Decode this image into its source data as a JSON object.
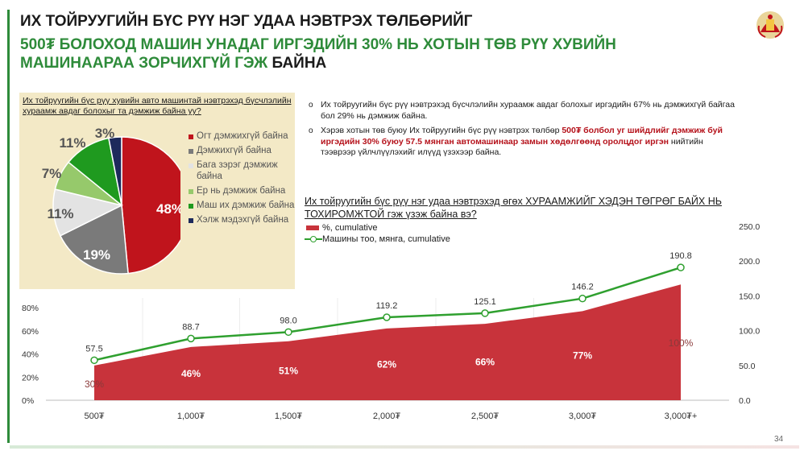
{
  "header": {
    "title_line1": "ИХ ТОЙРУУГИЙН БҮС РҮҮ НЭГ УДАА НЭВТРЭХ ТӨЛБӨРИЙГ",
    "title_line2": "500₮ БОЛОХОД МАШИН УНАДАГ ИРГЭДИЙН 30% НЬ ХОТЫН ТӨВ РҮҮ ХУВИЙН",
    "title_line3_green": "МАШИНААРАА ЗОРЧИХГҮЙ ГЭЖ ",
    "title_line3_dark": "БАЙНА"
  },
  "bullets": {
    "b1": "Их тойруугийн бүс рүү нэвтрэхэд бүсчлэлийн хураамж авдаг болохыг иргэдийн 67% нь дэмжихгүй байгаа бол 29% нь дэмжиж байна.",
    "b2_part1": "Хэрэв хотын төв буюу Их тойруугийн бүс рүү нэвтрэх төлбөр ",
    "b2_highlight": "500₮ болбол уг шийдлийг дэмжиж буй иргэдийн 30% буюу 57.5 мянган автомашинаар замын хөдөлгөөнд оролцдог иргэн",
    "b2_part2": " нийтийн тээврээр үйлчлүүлэхийг илүүд үзэхээр байна."
  },
  "page_number": "34",
  "chart_data": [
    {
      "type": "pie",
      "title": "Их тойруугийн бүс рүү хувийн авто машинтай нэвтрэхэд бүсчлэлийн хураамж авдаг болохыг та дэмжиж байна уу?",
      "slices": [
        {
          "label": "Огт дэмжихгүй байна",
          "value": 48,
          "value_label": "48%",
          "color": "#c0141c"
        },
        {
          "label": "Дэмжихгүй байна",
          "value": 19,
          "value_label": "19%",
          "color": "#7a7a7a"
        },
        {
          "label": "Бага зэрэг дэмжиж байна",
          "value": 11,
          "value_label": "11%",
          "color": "#e3e3e3"
        },
        {
          "label": "Ер нь дэмжиж байна",
          "value": 7,
          "value_label": "7%",
          "color": "#96c96b"
        },
        {
          "label": "Маш их дэмжиж байна",
          "value": 11,
          "value_label": "11%",
          "color": "#1f9a1f"
        },
        {
          "label": "Хэлж мэдэхгүй байна",
          "value": 3,
          "value_label": "3%",
          "color": "#1d2a5c"
        }
      ]
    },
    {
      "type": "area",
      "title": "Их тойруугийн бүс рүү нэг удаа нэвтрэхэд өгөх ХУРААМЖИЙГ ХЭДЭН ТӨГРӨГ БАЙХ НЬ ТОХИРОМЖТОЙ гэж үзэж байна вэ?",
      "categories": [
        "500₮",
        "1,000₮",
        "1,500₮",
        "2,000₮",
        "2,500₮",
        "3,000₮",
        "3,000₮+"
      ],
      "series": [
        {
          "name": "%, cumulative",
          "axis": "left",
          "values": [
            30,
            46,
            51,
            62,
            66,
            77,
            100
          ],
          "labels": [
            "30%",
            "46%",
            "51%",
            "62%",
            "66%",
            "77%",
            "100%"
          ],
          "color": "#c8333b"
        },
        {
          "name": "Машины тоо, мянга, cumulative",
          "axis": "right",
          "values": [
            57.5,
            88.7,
            98.0,
            119.2,
            125.1,
            146.2,
            190.8
          ],
          "labels": [
            "57.5",
            "88.7",
            "98.0",
            "119.2",
            "125.1",
            "146.2",
            "190.8"
          ],
          "color": "#2fa02f"
        }
      ],
      "left_axis": {
        "min": 0,
        "max": 80,
        "ticks": [
          "0%",
          "20%",
          "40%",
          "60%",
          "80%"
        ]
      },
      "right_axis": {
        "min": 0,
        "max": 250,
        "ticks": [
          "0.0",
          "50.0",
          "100.0",
          "150.0",
          "200.0",
          "250.0"
        ]
      },
      "legend_position": "top-left"
    }
  ]
}
